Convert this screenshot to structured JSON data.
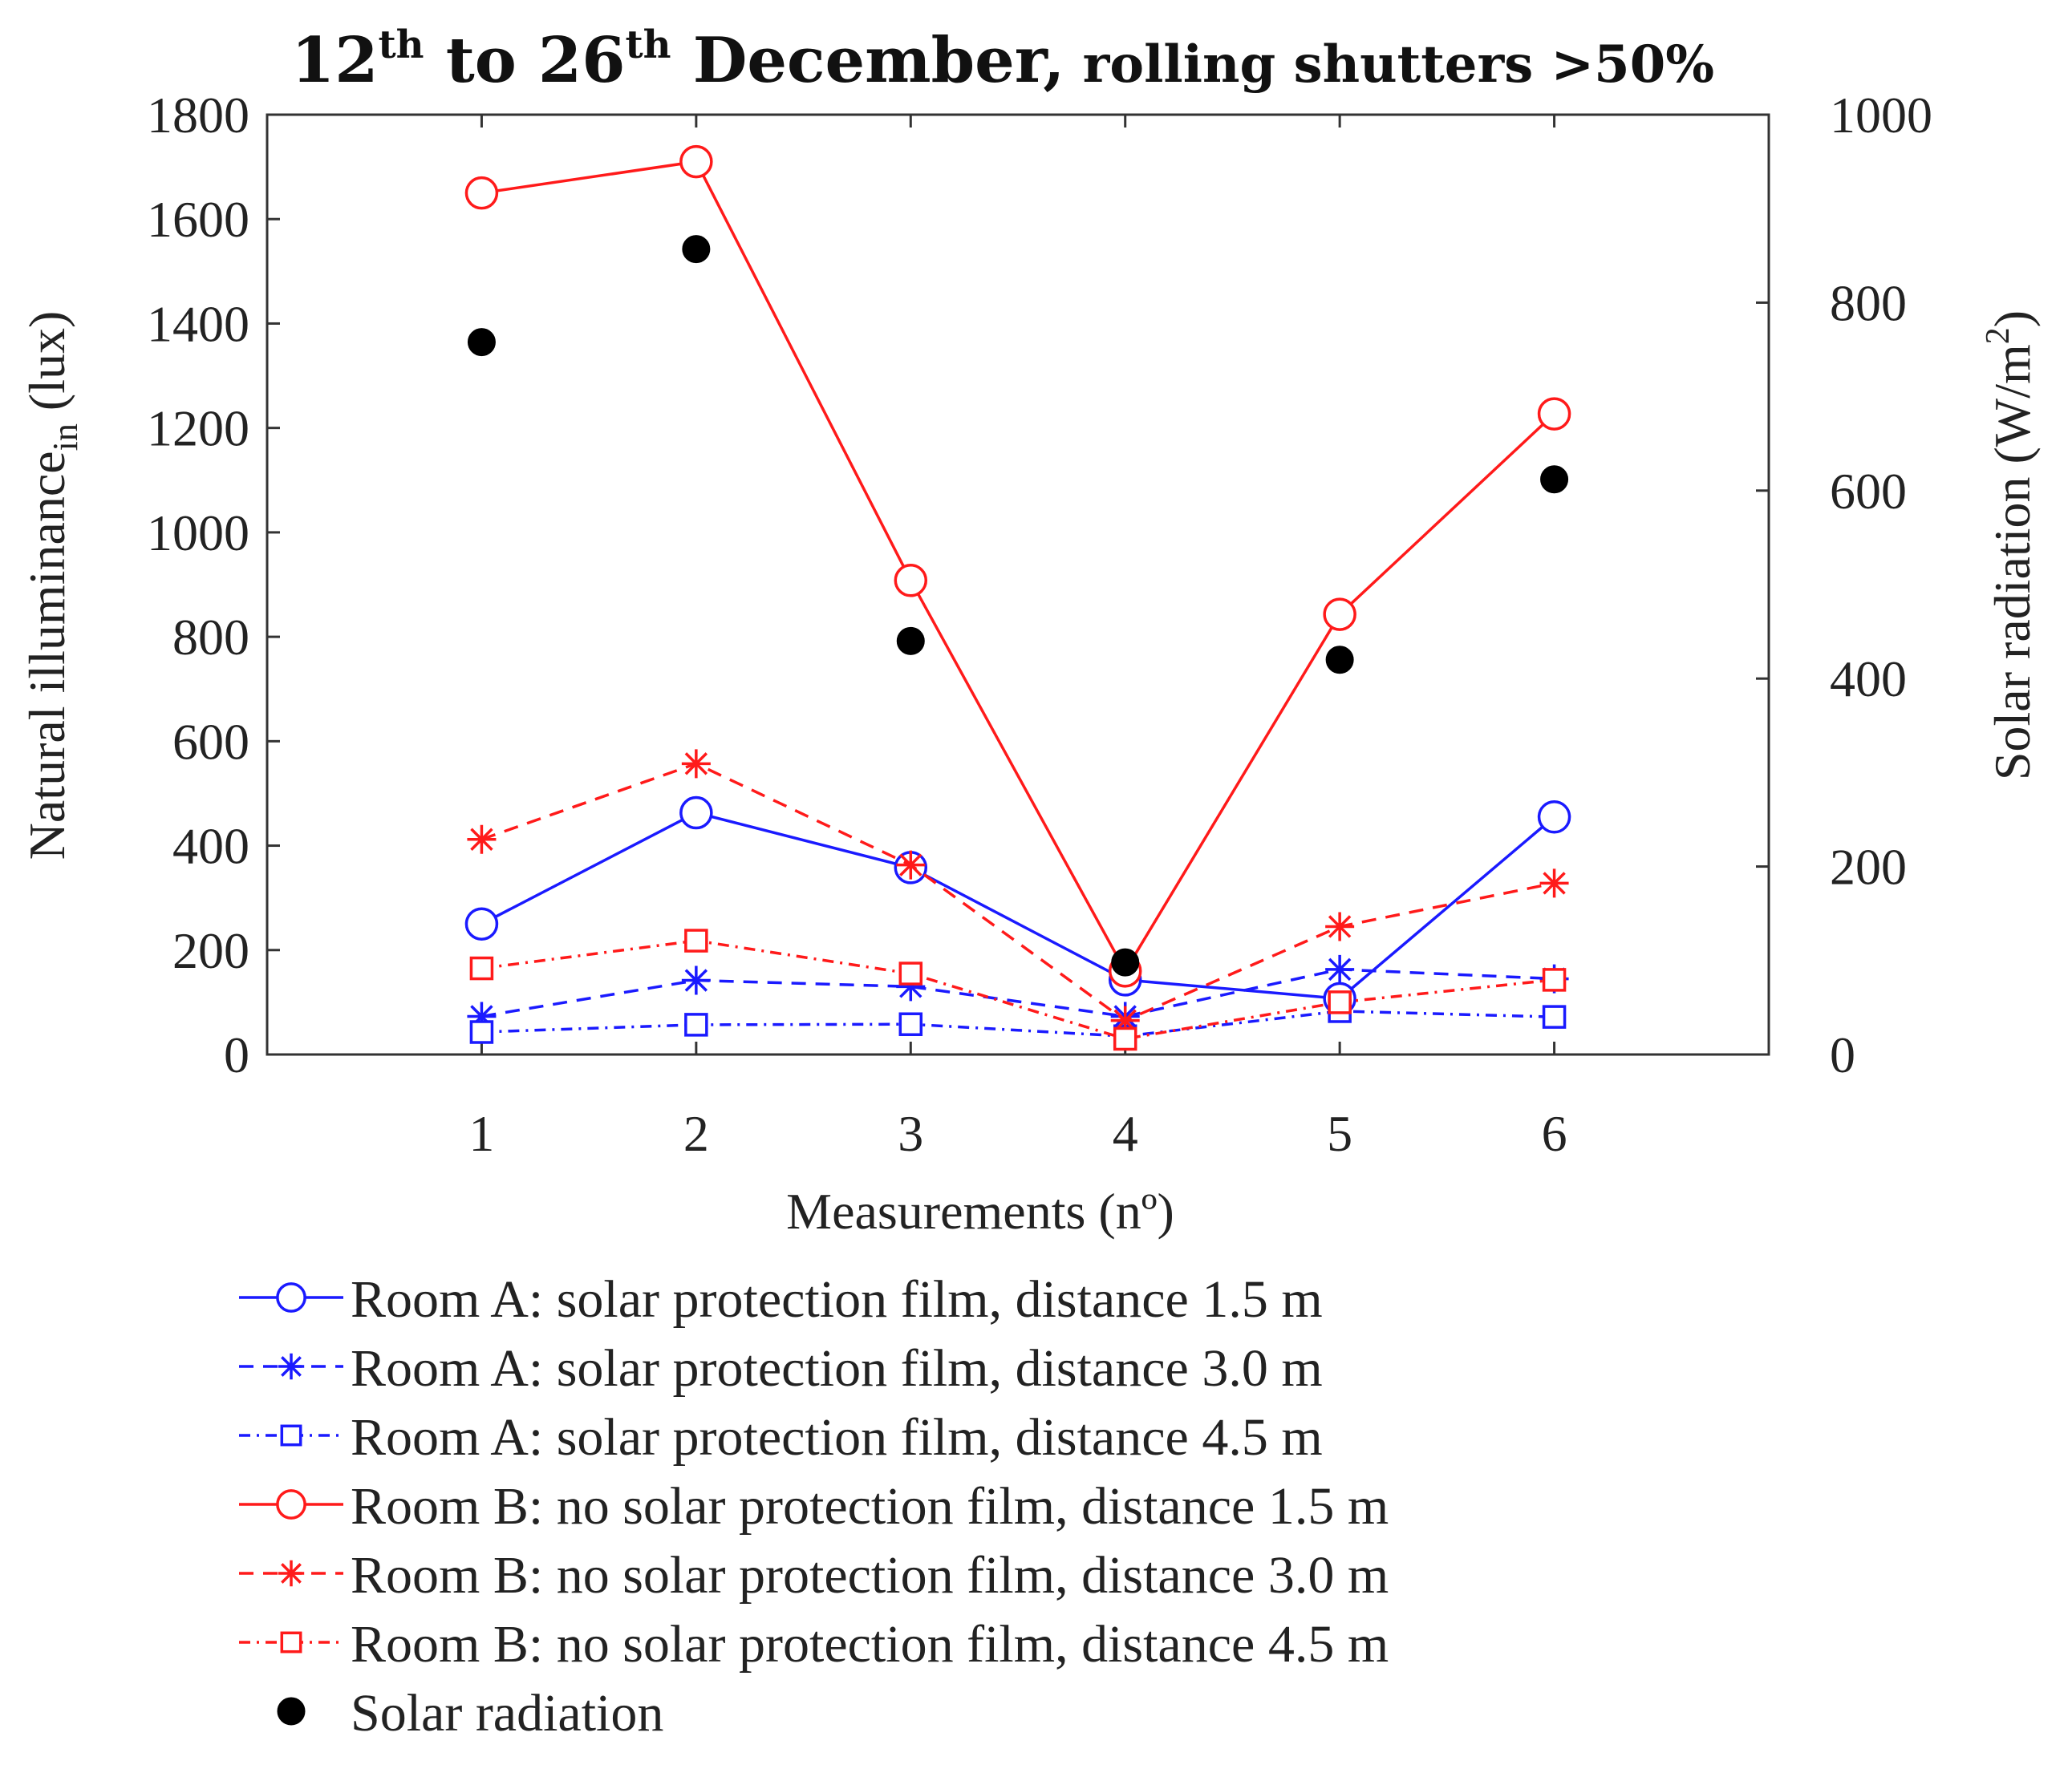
{
  "chart_data": {
    "type": "line",
    "title": {
      "part1": "12",
      "sup1": "th",
      "part2": " to 26",
      "sup2": "th",
      "part3": " December,",
      "part4": " rolling shutters >50%"
    },
    "xlabel": "Measurements (nº)",
    "ylabel_left": {
      "main": "Natural illuminance",
      "sub": "in",
      "unit": " (lux)"
    },
    "ylabel_right": {
      "main": "Solar radiation (W/m",
      "sup": "2",
      "end": ")"
    },
    "x": [
      1,
      2,
      3,
      4,
      5,
      6
    ],
    "x_ticks": [
      "1",
      "2",
      "3",
      "4",
      "5",
      "6"
    ],
    "xlim": [
      0,
      7
    ],
    "ylim_left": [
      0,
      1800
    ],
    "yticks_left": [
      "0",
      "200",
      "400",
      "600",
      "800",
      "1000",
      "1200",
      "1400",
      "1600",
      "1800"
    ],
    "ylim_right": [
      0,
      1000
    ],
    "yticks_right": [
      "0",
      "200",
      "400",
      "600",
      "800",
      "1000"
    ],
    "grid": false,
    "legend_position": "below",
    "series": [
      {
        "name": "Room A: solar protection film, distance 1.5 m",
        "color": "#1a1aff",
        "line": "solid",
        "marker": "circle",
        "axis": "left",
        "values": [
          250,
          463,
          358,
          143,
          107,
          455
        ]
      },
      {
        "name": "Room A: solar protection film, distance 3.0 m",
        "color": "#1a1aff",
        "line": "dashed",
        "marker": "star",
        "axis": "left",
        "values": [
          73,
          142,
          130,
          73,
          163,
          145
        ]
      },
      {
        "name": "Room A: solar protection film, distance 4.5 m",
        "color": "#1a1aff",
        "line": "dashdot",
        "marker": "square",
        "axis": "left",
        "values": [
          43,
          57,
          58,
          35,
          83,
          72
        ]
      },
      {
        "name": "Room B: no solar protection film, distance 1.5 m",
        "color": "#ff1a1a",
        "line": "solid",
        "marker": "circle",
        "axis": "left",
        "values": [
          1650,
          1710,
          908,
          160,
          843,
          1227
        ]
      },
      {
        "name": "Room B: no solar protection film, distance 3.0 m",
        "color": "#ff1a1a",
        "line": "dashed",
        "marker": "star",
        "axis": "left",
        "values": [
          412,
          557,
          363,
          65,
          245,
          328
        ]
      },
      {
        "name": "Room B: no solar protection film, distance 4.5 m",
        "color": "#ff1a1a",
        "line": "dashdot",
        "marker": "square",
        "axis": "left",
        "values": [
          165,
          218,
          155,
          30,
          100,
          143
        ]
      },
      {
        "name": "Solar radiation",
        "color": "#000000",
        "line": "none",
        "marker": "dot",
        "axis": "right",
        "values": [
          758,
          857,
          440,
          98,
          420,
          612
        ]
      }
    ]
  }
}
